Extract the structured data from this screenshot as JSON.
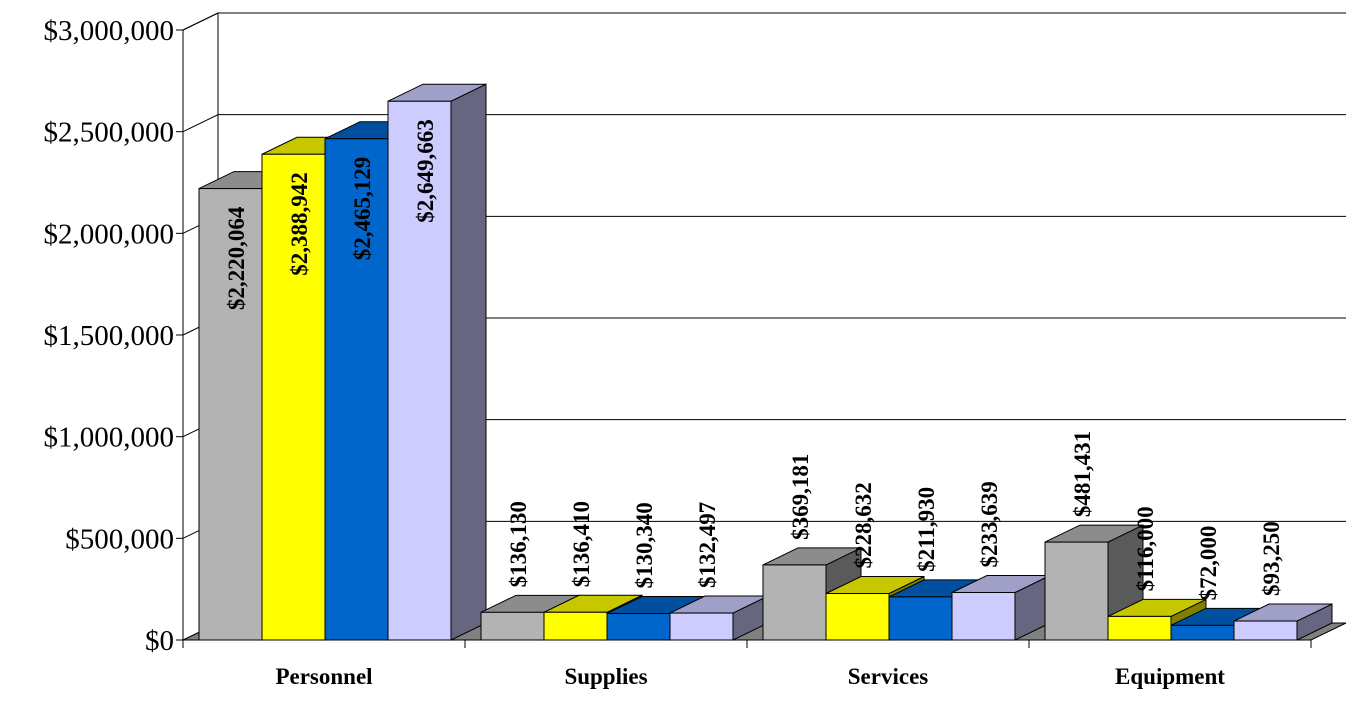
{
  "chart_data": {
    "type": "bar",
    "categories": [
      "Personnel",
      "Supplies",
      "Services",
      "Equipment"
    ],
    "series": [
      {
        "values": [
          2220064,
          136130,
          369181,
          481431
        ],
        "color": "#b3b3b3"
      },
      {
        "values": [
          2388942,
          136410,
          228632,
          116000
        ],
        "color": "#ffff00"
      },
      {
        "values": [
          2465129,
          130340,
          211930,
          72000
        ],
        "color": "#0066cc"
      },
      {
        "values": [
          2649663,
          132497,
          233639,
          93250
        ],
        "color": "#ccccff"
      }
    ],
    "data_labels": [
      [
        "$2,220,064",
        "$136,130",
        "$369,181",
        "$481,431"
      ],
      [
        "$2,388,942",
        "$136,410",
        "$228,632",
        "$116,000"
      ],
      [
        "$2,465,129",
        "$130,340",
        "$211,930",
        "$72,000"
      ],
      [
        "$2,649,663",
        "$132,497",
        "$233,639",
        "$93,250"
      ]
    ],
    "y_ticks": [
      0,
      500000,
      1000000,
      1500000,
      2000000,
      2500000,
      3000000
    ],
    "y_tick_labels": [
      "$0",
      "$500,000",
      "$1,000,000",
      "$1,500,000",
      "$2,000,000",
      "$2,500,000",
      "$3,000,000"
    ],
    "ylim": [
      0,
      3000000
    ],
    "grid": true,
    "three_d": true,
    "title": "",
    "xlabel": "",
    "ylabel": ""
  }
}
